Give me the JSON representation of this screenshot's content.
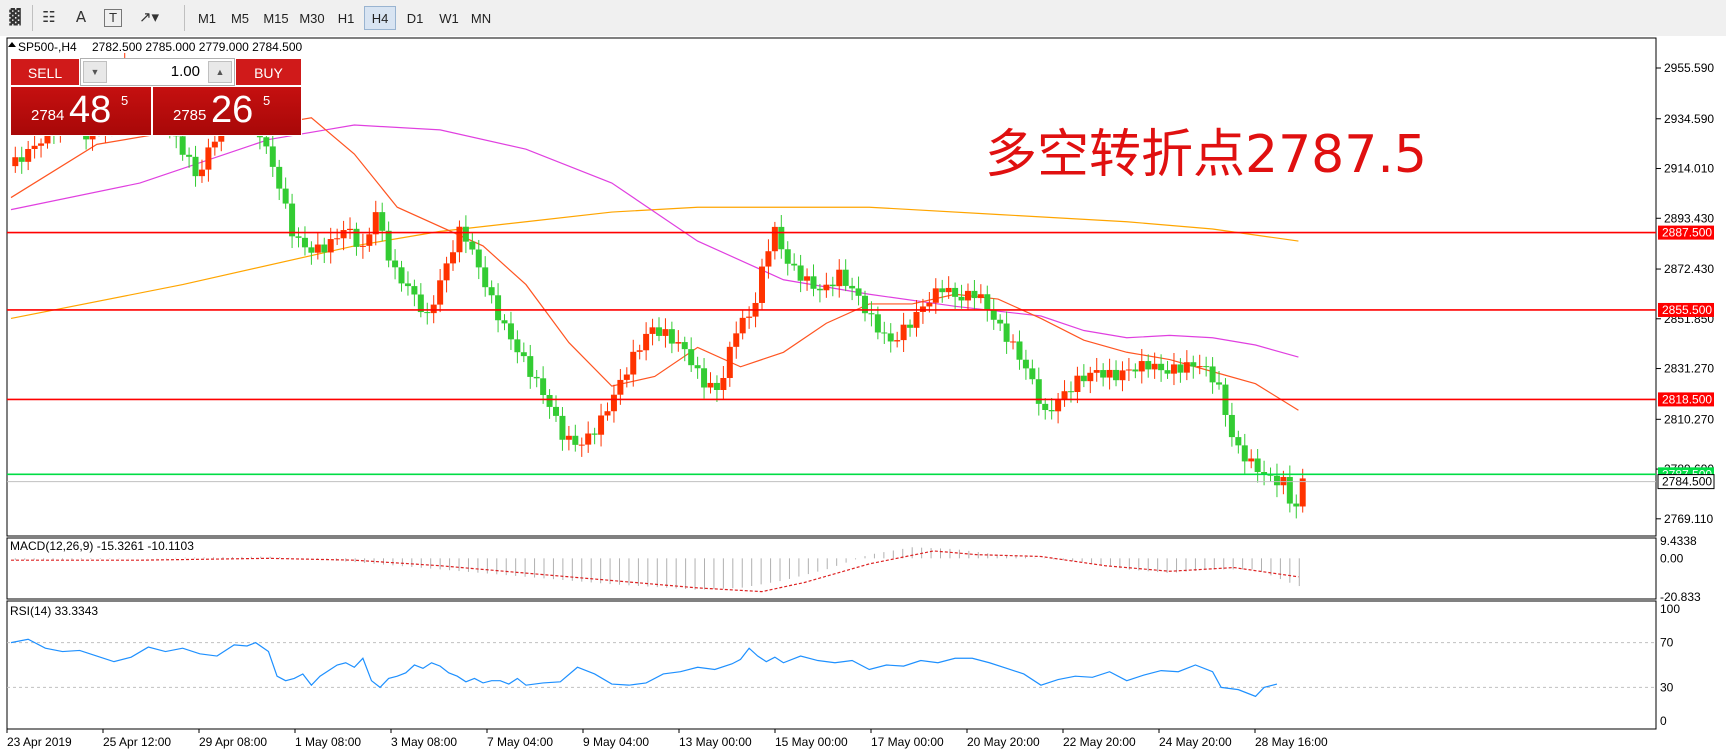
{
  "toolbar": {
    "icons": [
      "chart-expert-icon",
      "grid-icon",
      "text-label-icon",
      "text-box-icon",
      "arrow-shape-icon"
    ],
    "text_tool_label": "A",
    "text_box_label": "T",
    "timeframes": [
      "M1",
      "M5",
      "M15",
      "M30",
      "H1",
      "H4",
      "D1",
      "W1",
      "MN"
    ],
    "active_timeframe": "H4"
  },
  "chart_header": {
    "symbol": "SP500-,H4",
    "ohlc": "2782.500 2785.000 2779.000 2784.500"
  },
  "trade_panel": {
    "sell_label": "SELL",
    "buy_label": "BUY",
    "lot": "1.00",
    "sell_prefix": "2784",
    "sell_big": "48",
    "sell_sup": "5",
    "buy_prefix": "2785",
    "buy_big": "26",
    "buy_sup": "5"
  },
  "annotation": "多空转折点2787.5",
  "chart_data": [
    {
      "type": "candlestick",
      "title": "SP500-,H4",
      "y_ticks": [
        "2955.590",
        "2934.590",
        "2914.010",
        "2893.430",
        "2872.430",
        "2851.850",
        "2831.270",
        "2810.270",
        "2789.690",
        "2769.110"
      ],
      "ylim": [
        2762,
        2968
      ],
      "horizontal_levels": [
        {
          "label": "2887.500",
          "value": 2887.5,
          "color": "#ff0000"
        },
        {
          "label": "2855.500",
          "value": 2855.5,
          "color": "#ff0000"
        },
        {
          "label": "2818.500",
          "value": 2818.5,
          "color": "#ff0000"
        },
        {
          "label": "2787.500",
          "value": 2787.5,
          "color": "#00dd44"
        }
      ],
      "current_price": {
        "label": "2784.500",
        "value": 2784.5
      },
      "x_labels": [
        "23 Apr 2019",
        "25 Apr 12:00",
        "29 Apr 08:00",
        "1 May 08:00",
        "3 May 08:00",
        "7 May 04:00",
        "9 May 04:00",
        "13 May 00:00",
        "15 May 00:00",
        "17 May 00:00",
        "20 May 20:00",
        "22 May 20:00",
        "24 May 20:00",
        "28 May 16:00"
      ],
      "close_path": [
        [
          0,
          2915
        ],
        [
          6,
          2924
        ],
        [
          10,
          2931
        ],
        [
          14,
          2937
        ],
        [
          18,
          2927
        ],
        [
          22,
          2932
        ],
        [
          26,
          2952
        ],
        [
          27,
          2958
        ],
        [
          31,
          2938
        ],
        [
          35,
          2935
        ],
        [
          39,
          2925
        ],
        [
          42,
          2915
        ],
        [
          44,
          2910
        ],
        [
          46,
          2922
        ],
        [
          50,
          2935
        ],
        [
          54,
          2944
        ],
        [
          58,
          2929
        ],
        [
          62,
          2910
        ],
        [
          66,
          2885
        ],
        [
          70,
          2880
        ],
        [
          74,
          2882
        ],
        [
          78,
          2890
        ],
        [
          82,
          2880
        ],
        [
          85,
          2896
        ],
        [
          89,
          2872
        ],
        [
          93,
          2864
        ],
        [
          97,
          2852
        ],
        [
          101,
          2872
        ],
        [
          105,
          2890
        ],
        [
          109,
          2873
        ],
        [
          113,
          2855
        ],
        [
          117,
          2842
        ],
        [
          121,
          2830
        ],
        [
          125,
          2818
        ],
        [
          129,
          2802
        ],
        [
          133,
          2800
        ],
        [
          137,
          2808
        ],
        [
          141,
          2822
        ],
        [
          145,
          2836
        ],
        [
          149,
          2848
        ],
        [
          153,
          2845
        ],
        [
          157,
          2839
        ],
        [
          161,
          2826
        ],
        [
          165,
          2822
        ],
        [
          169,
          2848
        ],
        [
          173,
          2855
        ],
        [
          176,
          2880
        ],
        [
          178,
          2888
        ],
        [
          181,
          2875
        ],
        [
          185,
          2868
        ],
        [
          189,
          2863
        ],
        [
          193,
          2870
        ],
        [
          197,
          2862
        ],
        [
          201,
          2850
        ],
        [
          205,
          2842
        ],
        [
          209,
          2849
        ],
        [
          213,
          2858
        ],
        [
          217,
          2865
        ],
        [
          221,
          2860
        ],
        [
          225,
          2863
        ],
        [
          229,
          2852
        ],
        [
          233,
          2842
        ],
        [
          237,
          2830
        ],
        [
          241,
          2812
        ],
        [
          245,
          2820
        ],
        [
          249,
          2827
        ],
        [
          253,
          2830
        ],
        [
          257,
          2828
        ],
        [
          261,
          2831
        ],
        [
          265,
          2833
        ],
        [
          269,
          2830
        ],
        [
          273,
          2832
        ],
        [
          277,
          2833
        ],
        [
          281,
          2826
        ],
        [
          285,
          2800
        ],
        [
          289,
          2792
        ],
        [
          293,
          2786
        ],
        [
          297,
          2784
        ],
        [
          299,
          2770
        ],
        [
          301,
          2785
        ]
      ],
      "ma_short": [
        [
          0,
          2902
        ],
        [
          20,
          2924
        ],
        [
          40,
          2930
        ],
        [
          60,
          2932
        ],
        [
          70,
          2935
        ],
        [
          80,
          2920
        ],
        [
          90,
          2898
        ],
        [
          110,
          2882
        ],
        [
          120,
          2866
        ],
        [
          130,
          2842
        ],
        [
          140,
          2824
        ],
        [
          150,
          2828
        ],
        [
          160,
          2840
        ],
        [
          170,
          2832
        ],
        [
          180,
          2838
        ],
        [
          190,
          2850
        ],
        [
          200,
          2858
        ],
        [
          210,
          2858
        ],
        [
          220,
          2862
        ],
        [
          230,
          2860
        ],
        [
          240,
          2852
        ],
        [
          250,
          2843
        ],
        [
          260,
          2838
        ],
        [
          270,
          2835
        ],
        [
          280,
          2830
        ],
        [
          290,
          2825
        ],
        [
          300,
          2814
        ]
      ],
      "ma_medium": [
        [
          0,
          2897
        ],
        [
          30,
          2908
        ],
        [
          60,
          2926
        ],
        [
          80,
          2932
        ],
        [
          100,
          2930
        ],
        [
          120,
          2922
        ],
        [
          140,
          2908
        ],
        [
          160,
          2884
        ],
        [
          180,
          2868
        ],
        [
          200,
          2862
        ],
        [
          220,
          2857
        ],
        [
          240,
          2853
        ],
        [
          250,
          2847
        ],
        [
          260,
          2844
        ],
        [
          270,
          2845
        ],
        [
          280,
          2844
        ],
        [
          290,
          2841
        ],
        [
          300,
          2836
        ]
      ],
      "ma_long": [
        [
          0,
          2852
        ],
        [
          40,
          2866
        ],
        [
          80,
          2882
        ],
        [
          100,
          2888
        ],
        [
          120,
          2892
        ],
        [
          140,
          2896
        ],
        [
          160,
          2898
        ],
        [
          180,
          2898
        ],
        [
          200,
          2898
        ],
        [
          230,
          2895
        ],
        [
          260,
          2892
        ],
        [
          280,
          2889
        ],
        [
          300,
          2884
        ]
      ]
    },
    {
      "type": "bar",
      "title": "MACD(12,26,9) -15.3261 -10.1103",
      "y_ticks": [
        "9.4338",
        "0.00",
        "-20.833"
      ],
      "ylim": [
        -22,
        11
      ],
      "macd": [
        [
          0,
          -1
        ],
        [
          30,
          0
        ],
        [
          60,
          1
        ],
        [
          80,
          -2
        ],
        [
          100,
          -6
        ],
        [
          120,
          -10
        ],
        [
          140,
          -14
        ],
        [
          160,
          -17
        ],
        [
          170,
          -16
        ],
        [
          180,
          -12
        ],
        [
          190,
          -6
        ],
        [
          200,
          2
        ],
        [
          210,
          6
        ],
        [
          220,
          5
        ],
        [
          230,
          2
        ],
        [
          240,
          0
        ],
        [
          250,
          -2
        ],
        [
          260,
          -6
        ],
        [
          270,
          -8
        ],
        [
          280,
          -6
        ],
        [
          290,
          -6
        ],
        [
          300,
          -15
        ]
      ],
      "signal": [
        [
          0,
          -1
        ],
        [
          30,
          -1
        ],
        [
          60,
          0
        ],
        [
          80,
          -1
        ],
        [
          100,
          -4
        ],
        [
          120,
          -8
        ],
        [
          140,
          -12
        ],
        [
          160,
          -16
        ],
        [
          175,
          -18
        ],
        [
          185,
          -13
        ],
        [
          200,
          -3
        ],
        [
          215,
          4
        ],
        [
          225,
          2
        ],
        [
          240,
          1
        ],
        [
          255,
          -4
        ],
        [
          270,
          -7
        ],
        [
          285,
          -5
        ],
        [
          300,
          -10
        ]
      ]
    },
    {
      "type": "line",
      "title": "RSI(14) 33.3343",
      "y_ticks": [
        "100",
        "70",
        "30",
        "0"
      ],
      "ylim": [
        0,
        100
      ],
      "levels": [
        70,
        30
      ],
      "values": [
        [
          0,
          70
        ],
        [
          4,
          73
        ],
        [
          8,
          65
        ],
        [
          12,
          62
        ],
        [
          16,
          63
        ],
        [
          20,
          58
        ],
        [
          24,
          53
        ],
        [
          28,
          57
        ],
        [
          32,
          66
        ],
        [
          36,
          62
        ],
        [
          40,
          65
        ],
        [
          44,
          60
        ],
        [
          48,
          58
        ],
        [
          52,
          68
        ],
        [
          55,
          67
        ],
        [
          57,
          70
        ],
        [
          60,
          62
        ],
        [
          62,
          40
        ],
        [
          64,
          36
        ],
        [
          66,
          38
        ],
        [
          68,
          42
        ],
        [
          70,
          32
        ],
        [
          72,
          40
        ],
        [
          74,
          45
        ],
        [
          76,
          50
        ],
        [
          78,
          52
        ],
        [
          80,
          48
        ],
        [
          82,
          56
        ],
        [
          84,
          36
        ],
        [
          86,
          30
        ],
        [
          88,
          38
        ],
        [
          90,
          40
        ],
        [
          92,
          43
        ],
        [
          94,
          50
        ],
        [
          96,
          47
        ],
        [
          98,
          52
        ],
        [
          100,
          49
        ],
        [
          102,
          43
        ],
        [
          104,
          40
        ],
        [
          106,
          35
        ],
        [
          108,
          38
        ],
        [
          110,
          34
        ],
        [
          112,
          36
        ],
        [
          114,
          36
        ],
        [
          116,
          33
        ],
        [
          118,
          38
        ],
        [
          120,
          32
        ],
        [
          124,
          34
        ],
        [
          128,
          35
        ],
        [
          132,
          48
        ],
        [
          136,
          42
        ],
        [
          140,
          33
        ],
        [
          144,
          32
        ],
        [
          148,
          34
        ],
        [
          152,
          42
        ],
        [
          156,
          44
        ],
        [
          160,
          48
        ],
        [
          164,
          46
        ],
        [
          168,
          51
        ],
        [
          170,
          55
        ],
        [
          172,
          65
        ],
        [
          174,
          58
        ],
        [
          176,
          53
        ],
        [
          178,
          57
        ],
        [
          180,
          52
        ],
        [
          184,
          58
        ],
        [
          188,
          54
        ],
        [
          192,
          52
        ],
        [
          196,
          54
        ],
        [
          200,
          46
        ],
        [
          204,
          50
        ],
        [
          208,
          49
        ],
        [
          212,
          54
        ],
        [
          216,
          52
        ],
        [
          220,
          56
        ],
        [
          224,
          56
        ],
        [
          228,
          52
        ],
        [
          232,
          47
        ],
        [
          236,
          42
        ],
        [
          240,
          32
        ],
        [
          244,
          37
        ],
        [
          248,
          40
        ],
        [
          252,
          39
        ],
        [
          256,
          44
        ],
        [
          260,
          36
        ],
        [
          264,
          41
        ],
        [
          268,
          45
        ],
        [
          272,
          44
        ],
        [
          276,
          50
        ],
        [
          280,
          44
        ],
        [
          282,
          30
        ],
        [
          286,
          28
        ],
        [
          290,
          22
        ],
        [
          292,
          30
        ],
        [
          295,
          33
        ]
      ]
    }
  ]
}
